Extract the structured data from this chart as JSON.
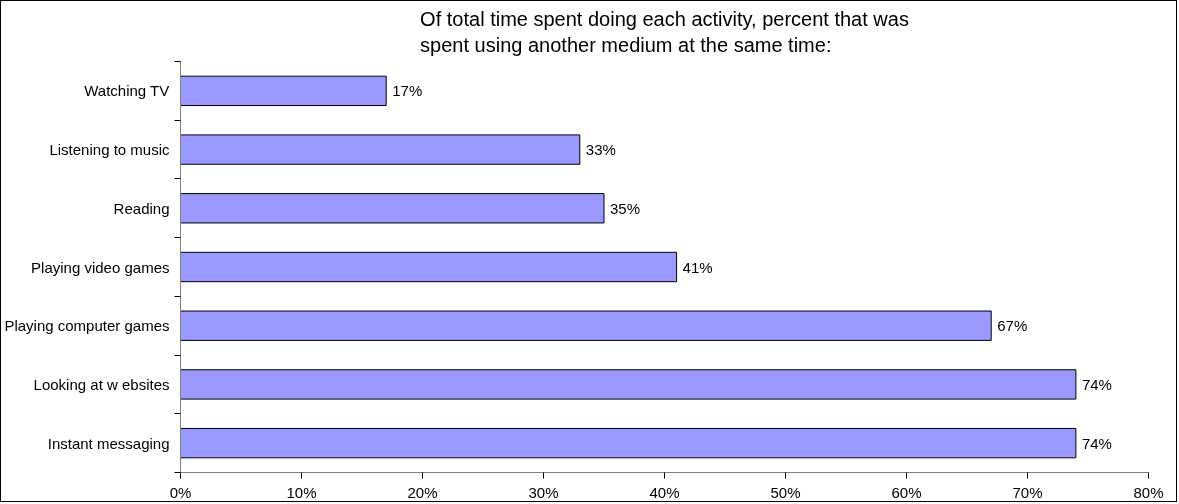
{
  "chart_data": {
    "type": "bar",
    "orientation": "horizontal",
    "title": "Of total time spent doing each activity, percent that was spent using another medium at the same time:",
    "categories": [
      "Watching TV",
      "Listening to music",
      "Reading",
      "Playing video games",
      "Playing computer games",
      "Looking at w ebsites",
      "Instant messaging"
    ],
    "values": [
      17,
      33,
      35,
      41,
      67,
      74,
      74
    ],
    "value_labels": [
      "17%",
      "33%",
      "35%",
      "41%",
      "67%",
      "74%",
      "74%"
    ],
    "color": "#9999ff",
    "xlim": [
      0,
      80
    ],
    "xticks": [
      {
        "value": 0,
        "label": "0%"
      },
      {
        "value": 10,
        "label": "10%"
      },
      {
        "value": 20,
        "label": "20%"
      },
      {
        "value": 30,
        "label": "30%"
      },
      {
        "value": 40,
        "label": "40%"
      },
      {
        "value": 50,
        "label": "50%"
      },
      {
        "value": 60,
        "label": "60%"
      },
      {
        "value": 70,
        "label": "70%"
      },
      {
        "value": 80,
        "label": "80%"
      }
    ],
    "grid": false
  }
}
